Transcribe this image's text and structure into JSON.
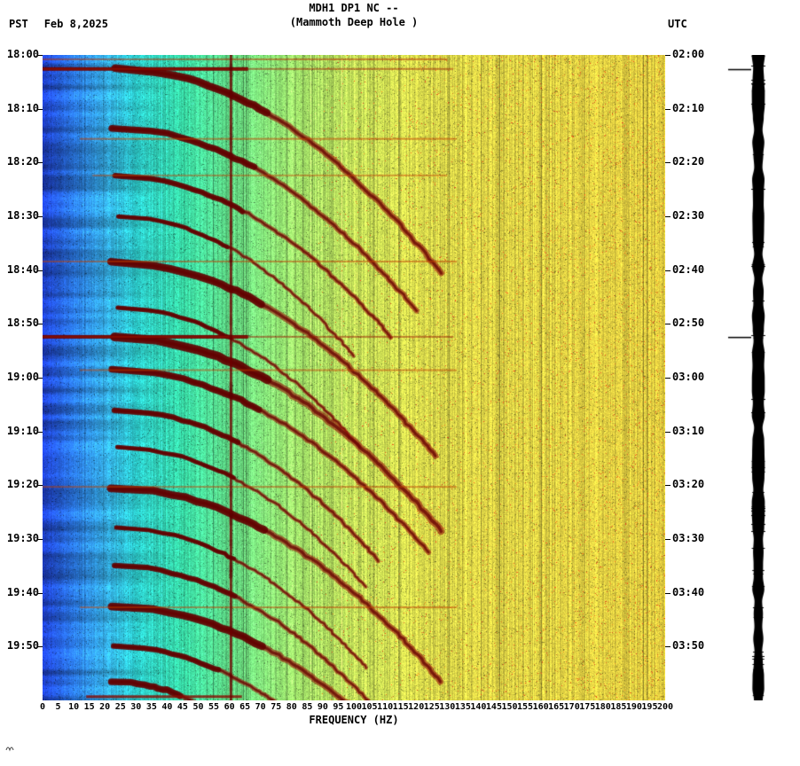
{
  "header": {
    "tz_left": "PST",
    "date": "Feb 8,2025",
    "tz_right": "UTC"
  },
  "chart_data": {
    "type": "heatmap",
    "title": "MDH1 DP1 NC --",
    "subtitle": "(Mammoth Deep Hole )",
    "station": "MDH1 DP1 NC",
    "station_name": "Mammoth Deep Hole",
    "date": "Feb 8,2025",
    "xlabel": "FREQUENCY (HZ)",
    "x_range": [
      0,
      200
    ],
    "x_tick_step": 5,
    "x_ticks": [
      0,
      5,
      10,
      15,
      20,
      25,
      30,
      35,
      40,
      45,
      50,
      55,
      60,
      65,
      70,
      75,
      80,
      85,
      90,
      95,
      100,
      105,
      110,
      115,
      120,
      125,
      130,
      135,
      140,
      145,
      150,
      155,
      160,
      165,
      170,
      175,
      180,
      185,
      190,
      195,
      200
    ],
    "time_axis": {
      "left_tz": "PST",
      "right_tz": "UTC",
      "minutes_span": 120,
      "label_step_minutes": 10,
      "left_labels": [
        "18:00",
        "18:10",
        "18:20",
        "18:30",
        "18:40",
        "18:50",
        "19:00",
        "19:10",
        "19:20",
        "19:30",
        "19:40",
        "19:50"
      ],
      "right_labels": [
        "02:00",
        "02:10",
        "02:20",
        "02:30",
        "02:40",
        "02:50",
        "03:00",
        "03:10",
        "03:20",
        "03:30",
        "03:40",
        "03:50"
      ]
    },
    "spectrogram": {
      "palette": [
        [
          0,
          "#1e3ec8"
        ],
        [
          10,
          "#2b78e2"
        ],
        [
          20,
          "#34a8e0"
        ],
        [
          30,
          "#2cc8c8"
        ],
        [
          45,
          "#38d8a4"
        ],
        [
          62,
          "#66dc82"
        ],
        [
          80,
          "#9ade6a"
        ],
        [
          100,
          "#c2de58"
        ],
        [
          120,
          "#d6d84c"
        ],
        [
          140,
          "#dcd246"
        ],
        [
          200,
          "#e2cc40"
        ]
      ],
      "arc_color": "#961908",
      "arc_core_color": "#690505",
      "vertical_lines": [
        {
          "f": 60.5,
          "w": 3,
          "color": "#6e0000",
          "alpha": 0.8
        },
        {
          "f": 135,
          "w": 2,
          "color": "#5a4a00",
          "alpha": 0.18
        }
      ],
      "arcs": [
        {
          "t0": 2.5,
          "dur": 38,
          "f0": 23,
          "f1": 128,
          "w": 7
        },
        {
          "t0": 13.5,
          "dur": 34,
          "f0": 22,
          "f1": 120,
          "w": 6
        },
        {
          "t0": 22.5,
          "dur": 30,
          "f0": 23,
          "f1": 112,
          "w": 5
        },
        {
          "t0": 30,
          "dur": 26,
          "f0": 24,
          "f1": 100,
          "w": 4
        },
        {
          "t0": 38.5,
          "dur": 36,
          "f0": 22,
          "f1": 126,
          "w": 7
        },
        {
          "t0": 47,
          "dur": 26,
          "f0": 24,
          "f1": 102,
          "w": 4
        },
        {
          "t0": 52.5,
          "dur": 36,
          "f0": 23,
          "f1": 128,
          "w": 8
        },
        {
          "t0": 58.5,
          "dur": 34,
          "f0": 22,
          "f1": 124,
          "w": 6
        },
        {
          "t0": 66,
          "dur": 28,
          "f0": 23,
          "f1": 108,
          "w": 5
        },
        {
          "t0": 73,
          "dur": 26,
          "f0": 24,
          "f1": 104,
          "w": 4
        },
        {
          "t0": 80.5,
          "dur": 36,
          "f0": 22,
          "f1": 128,
          "w": 7
        },
        {
          "t0": 88,
          "dur": 26,
          "f0": 24,
          "f1": 104,
          "w": 4
        },
        {
          "t0": 95,
          "dur": 26,
          "f0": 23,
          "f1": 106,
          "w": 5
        },
        {
          "t0": 102.5,
          "dur": 34,
          "f0": 22,
          "f1": 126,
          "w": 7
        },
        {
          "t0": 110,
          "dur": 20,
          "f0": 23,
          "f1": 95,
          "w": 5
        },
        {
          "t0": 116.5,
          "dur": 12,
          "f0": 22,
          "f1": 70,
          "w": 6
        }
      ],
      "event_lines": [
        {
          "t": 0.8,
          "f0": 0,
          "f1": 130,
          "w": 2,
          "color": "#b03000",
          "alpha": 0.55
        },
        {
          "t": 2.6,
          "f0": 0,
          "f1": 66,
          "w": 4,
          "color": "#6e0000",
          "alpha": 0.95
        },
        {
          "t": 2.6,
          "f0": 0,
          "f1": 132,
          "w": 2,
          "color": "#9a1a00",
          "alpha": 0.5
        },
        {
          "t": 15.6,
          "f0": 12,
          "f1": 133,
          "w": 2,
          "color": "#c04000",
          "alpha": 0.55
        },
        {
          "t": 22.4,
          "f0": 16,
          "f1": 130,
          "w": 2,
          "color": "#c04000",
          "alpha": 0.45
        },
        {
          "t": 38.4,
          "f0": 0,
          "f1": 133,
          "w": 2,
          "color": "#c04000",
          "alpha": 0.5
        },
        {
          "t": 52.4,
          "f0": 0,
          "f1": 66,
          "w": 4,
          "color": "#6e0000",
          "alpha": 0.95
        },
        {
          "t": 52.4,
          "f0": 0,
          "f1": 132,
          "w": 2,
          "color": "#9a1a00",
          "alpha": 0.5
        },
        {
          "t": 58.6,
          "f0": 12,
          "f1": 133,
          "w": 2,
          "color": "#c04000",
          "alpha": 0.5
        },
        {
          "t": 80.3,
          "f0": 0,
          "f1": 133,
          "w": 2,
          "color": "#c04000",
          "alpha": 0.5
        },
        {
          "t": 102.7,
          "f0": 12,
          "f1": 133,
          "w": 2,
          "color": "#c04000",
          "alpha": 0.5
        },
        {
          "t": 119.3,
          "f0": 14,
          "f1": 64,
          "w": 3,
          "color": "#8a0a00",
          "alpha": 0.8
        }
      ],
      "trace_marks": [
        2.6,
        52.4
      ]
    }
  }
}
